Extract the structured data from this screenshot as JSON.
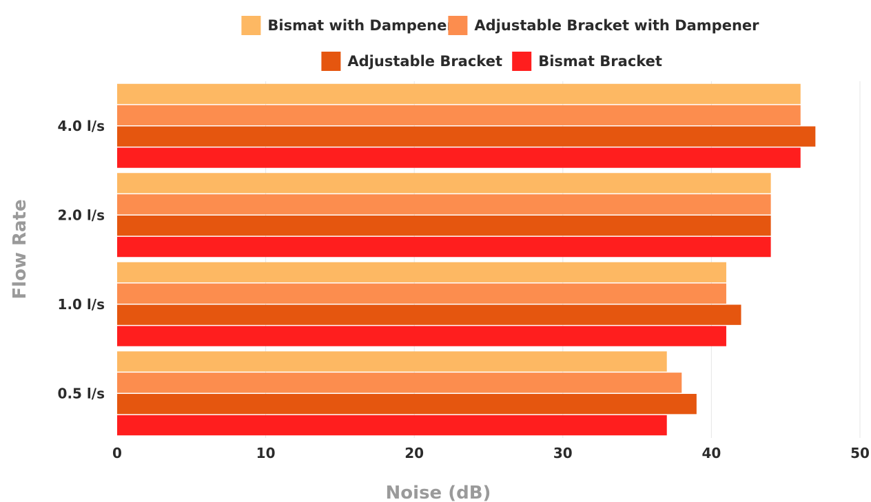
{
  "chart_data": {
    "type": "bar",
    "orientation": "horizontal",
    "categories": [
      "4.0 l/s",
      "2.0 l/s",
      "1.0 l/s",
      "0.5 l/s"
    ],
    "series": [
      {
        "name": "Bismat with Dampener",
        "color": "#FDB863",
        "values": [
          46,
          44,
          41,
          37
        ]
      },
      {
        "name": "Adjustable Bracket with Dampener",
        "color": "#FC8D4E",
        "values": [
          46,
          44,
          41,
          38
        ]
      },
      {
        "name": "Adjustable Bracket",
        "color": "#E5560F",
        "values": [
          47,
          44,
          42,
          39
        ]
      },
      {
        "name": "Bismat Bracket",
        "color": "#FF1E1E",
        "values": [
          46,
          44,
          41,
          37
        ]
      }
    ],
    "xlabel": "Noise (dB)",
    "ylabel": "Flow Rate",
    "xlim": [
      0,
      50
    ],
    "xticks": [
      0,
      10,
      20,
      30,
      40,
      50
    ],
    "grid": true,
    "legend": "top"
  }
}
